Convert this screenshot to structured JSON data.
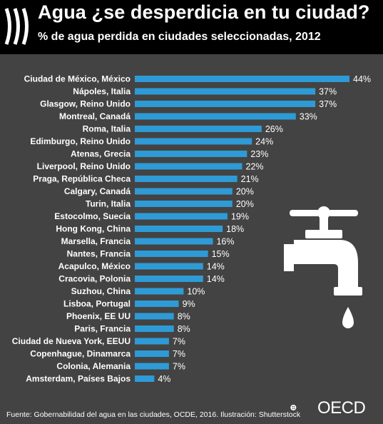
{
  "header": {
    "title": "Agua ¿se desperdicia en tu ciudad?",
    "subtitle": "% de agua perdida en ciudades seleccionadas, 2012"
  },
  "footer": {
    "source": "Fuente: Gobernabilidad del agua en las ciudades, OCDE, 2016.   Ilustración: Shutterstock",
    "logo_text": "OECD"
  },
  "icons": [
    "oecd-chevrons-icon",
    "water-tap-icon",
    "water-drop-icon",
    "oecd-globe-icon"
  ],
  "colors": {
    "bar": "#2E9BD6",
    "background": "#434343",
    "header": "#000000",
    "text": "#FFFFFF"
  },
  "chart_data": {
    "type": "bar",
    "orientation": "horizontal",
    "title": "Agua ¿se desperdicia en tu ciudad?",
    "subtitle": "% de agua perdida en ciudades seleccionadas, 2012",
    "value_suffix": "%",
    "xlim": [
      0,
      44
    ],
    "grid": false,
    "categories": [
      "Ciudad de México, México",
      "Nápoles, Italia",
      "Glasgow, Reino Unido",
      "Montreal, Canadá",
      "Roma, Italia",
      "Edimburgo, Reino Unido",
      "Atenas, Grecia",
      "Liverpool, Reino Unido",
      "Praga, República Checa",
      "Calgary, Canadá",
      "Turin, Italia",
      "Estocolmo, Suecia",
      "Hong Kong, China",
      "Marsella, Francia",
      "Nantes, Francia",
      "Acapulco, México",
      "Cracovia, Polonia",
      "Suzhou, China",
      "Lisboa, Portugal",
      "Phoenix, EE UU",
      "Paris, Francia",
      "Ciudad de Nueva York, EEUU",
      "Copenhague, Dinamarca",
      "Colonia, Alemania",
      "Amsterdam, Países Bajos"
    ],
    "values": [
      44,
      37,
      37,
      33,
      26,
      24,
      23,
      22,
      21,
      20,
      20,
      19,
      18,
      16,
      15,
      14,
      14,
      10,
      9,
      8,
      8,
      7,
      7,
      7,
      4
    ]
  }
}
